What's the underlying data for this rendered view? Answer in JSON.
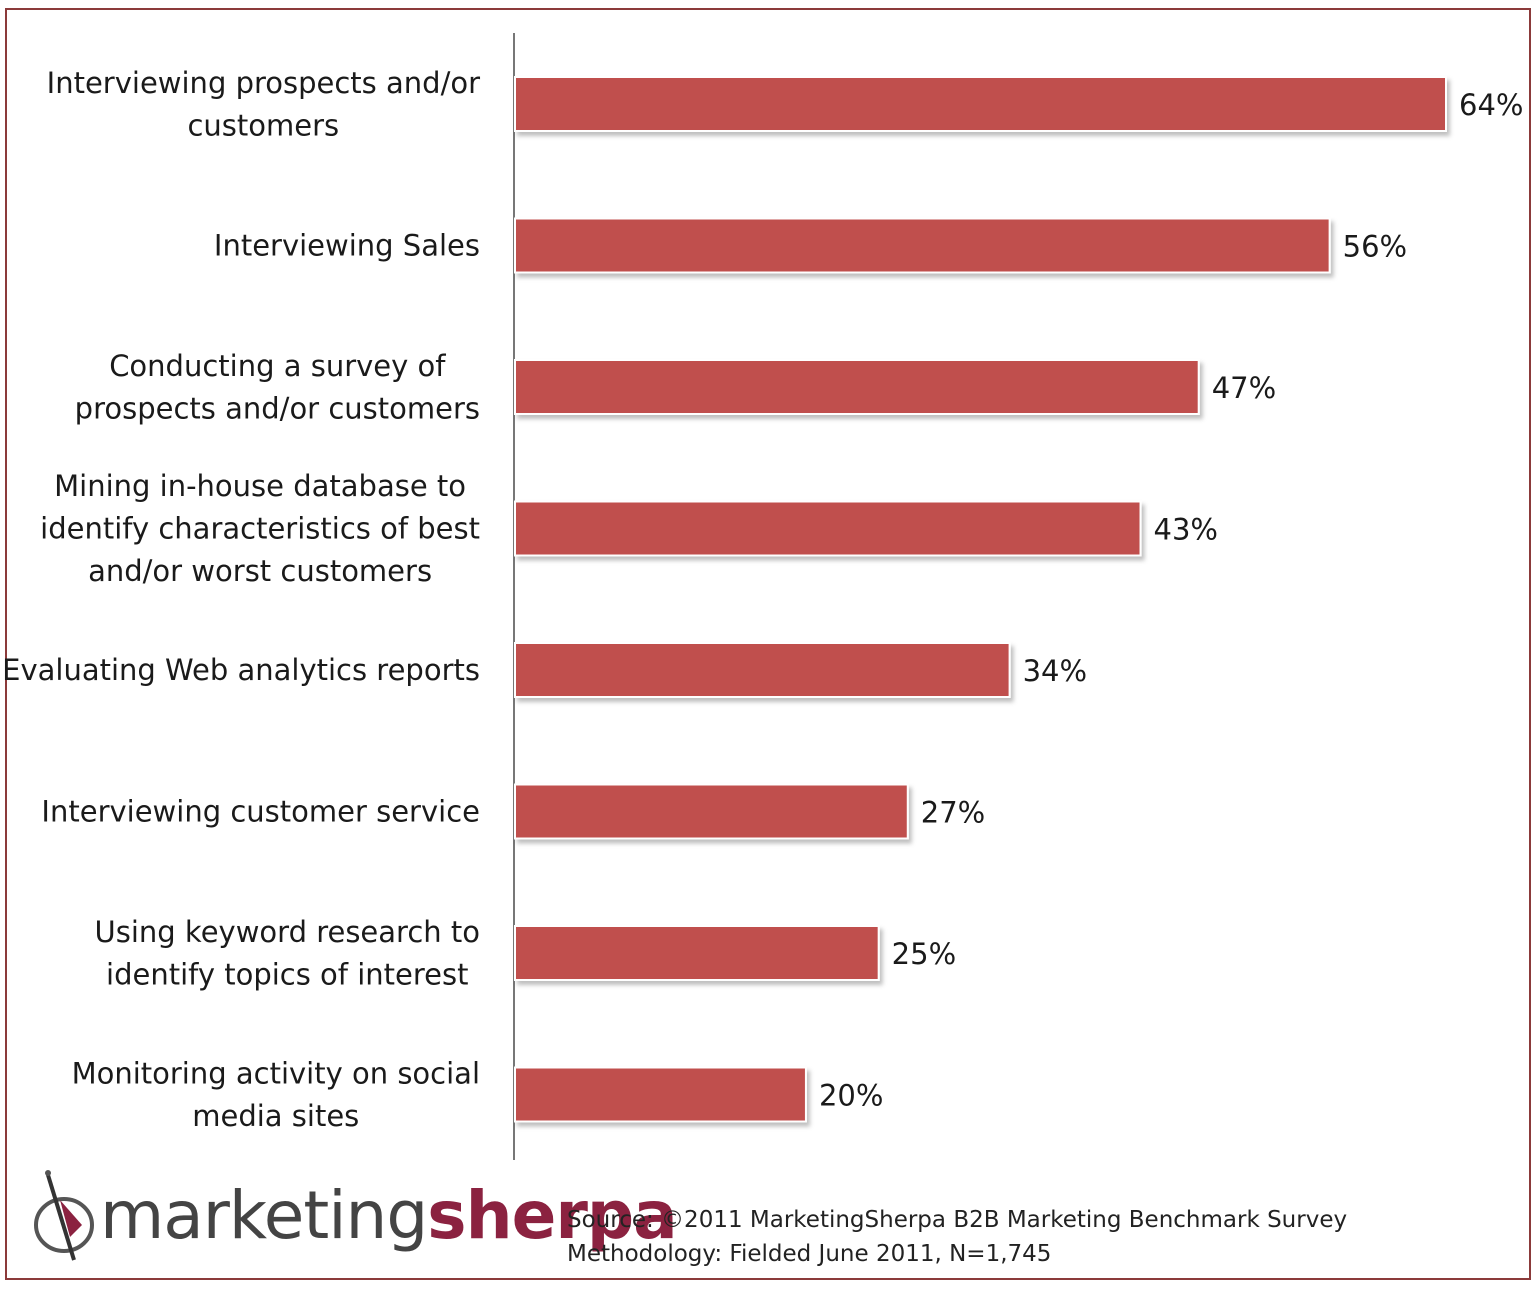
{
  "chart_data": {
    "type": "bar",
    "orientation": "horizontal",
    "categories": [
      [
        "Interviewing prospects and/or",
        "customers"
      ],
      [
        "Interviewing Sales"
      ],
      [
        "Conducting a survey of",
        "prospects and/or customers"
      ],
      [
        "Mining in-house database to",
        "identify characteristics of best",
        "and/or worst customers"
      ],
      [
        "Evaluating Web analytics reports"
      ],
      [
        "Interviewing customer service"
      ],
      [
        "Using keyword research to",
        "identify topics of interest"
      ],
      [
        "Monitoring activity on social",
        "media sites"
      ]
    ],
    "values": [
      64,
      56,
      47,
      43,
      34,
      27,
      25,
      20
    ],
    "value_labels": [
      "64%",
      "56%",
      "47%",
      "43%",
      "34%",
      "27%",
      "25%",
      "20%"
    ],
    "xlim": [
      0,
      64
    ],
    "grid": false,
    "bar_color": "#c0504d"
  },
  "footer": {
    "logo": {
      "part1": "marketing",
      "part2": "sherpa"
    },
    "source": "Source: ©2011 MarketingSherpa B2B Marketing Benchmark Survey",
    "methodology": "Methodology: Fielded June 2011, N=1,745"
  },
  "colors": {
    "frame": "#8b3a3a",
    "bar": "#c0504d",
    "logo_accent": "#8b2240"
  }
}
